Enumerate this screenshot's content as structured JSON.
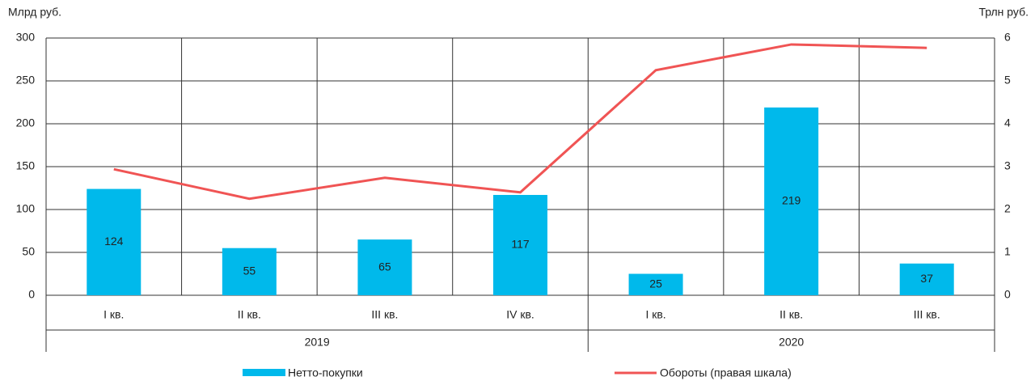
{
  "chart_data": {
    "type": "bar-line",
    "y_label": "Млрд руб.",
    "y2_label": "Трлн руб.",
    "categories": [
      "I кв.",
      "II кв.",
      "III кв.",
      "IV кв.",
      "I кв.",
      "II кв.",
      "III кв."
    ],
    "group_labels": [
      "2019",
      "2020"
    ],
    "group_sizes": [
      4,
      3
    ],
    "series": [
      {
        "name": "Нетто-покупки",
        "type": "bar",
        "color": "#00b9eb",
        "values": [
          124,
          55,
          65,
          117,
          25,
          219,
          37
        ]
      },
      {
        "name": "Обороты (правая шкала)",
        "type": "line",
        "axis": "y2",
        "color": "#f05454",
        "values": [
          2.94,
          2.25,
          2.74,
          2.4,
          5.25,
          5.85,
          5.77
        ]
      }
    ],
    "ylim": [
      0,
      300
    ],
    "yticks": [
      0,
      50,
      100,
      150,
      200,
      250,
      300
    ],
    "y2lim": [
      0,
      6
    ],
    "y2ticks": [
      0,
      1,
      2,
      3,
      4,
      5,
      6
    ],
    "grid": true
  }
}
